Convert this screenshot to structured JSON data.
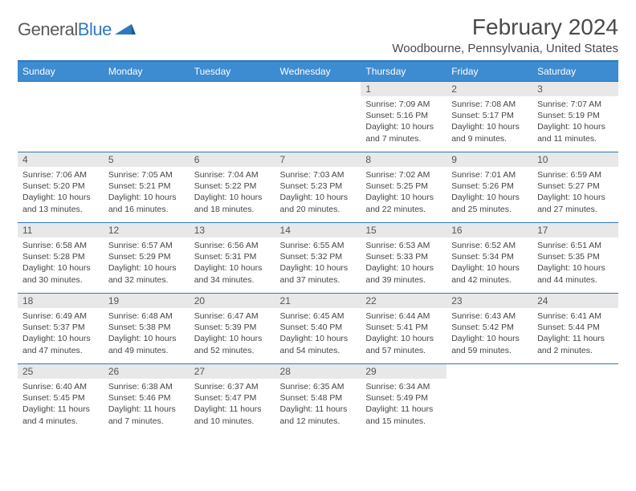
{
  "brand": {
    "word1": "General",
    "word2": "Blue"
  },
  "header": {
    "month_title": "February 2024",
    "location": "Woodbourne, Pennsylvania, United States"
  },
  "colors": {
    "accent": "#3d8bd0",
    "rule": "#2f78bf",
    "daynum_bg": "#e8e8e8",
    "text": "#454545"
  },
  "weekdays": [
    "Sunday",
    "Monday",
    "Tuesday",
    "Wednesday",
    "Thursday",
    "Friday",
    "Saturday"
  ],
  "layout": {
    "first_weekday_index": 4,
    "days_in_month": 29
  },
  "days": [
    {
      "n": 1,
      "sunrise": "7:09 AM",
      "sunset": "5:16 PM",
      "daylight": "10 hours and 7 minutes."
    },
    {
      "n": 2,
      "sunrise": "7:08 AM",
      "sunset": "5:17 PM",
      "daylight": "10 hours and 9 minutes."
    },
    {
      "n": 3,
      "sunrise": "7:07 AM",
      "sunset": "5:19 PM",
      "daylight": "10 hours and 11 minutes."
    },
    {
      "n": 4,
      "sunrise": "7:06 AM",
      "sunset": "5:20 PM",
      "daylight": "10 hours and 13 minutes."
    },
    {
      "n": 5,
      "sunrise": "7:05 AM",
      "sunset": "5:21 PM",
      "daylight": "10 hours and 16 minutes."
    },
    {
      "n": 6,
      "sunrise": "7:04 AM",
      "sunset": "5:22 PM",
      "daylight": "10 hours and 18 minutes."
    },
    {
      "n": 7,
      "sunrise": "7:03 AM",
      "sunset": "5:23 PM",
      "daylight": "10 hours and 20 minutes."
    },
    {
      "n": 8,
      "sunrise": "7:02 AM",
      "sunset": "5:25 PM",
      "daylight": "10 hours and 22 minutes."
    },
    {
      "n": 9,
      "sunrise": "7:01 AM",
      "sunset": "5:26 PM",
      "daylight": "10 hours and 25 minutes."
    },
    {
      "n": 10,
      "sunrise": "6:59 AM",
      "sunset": "5:27 PM",
      "daylight": "10 hours and 27 minutes."
    },
    {
      "n": 11,
      "sunrise": "6:58 AM",
      "sunset": "5:28 PM",
      "daylight": "10 hours and 30 minutes."
    },
    {
      "n": 12,
      "sunrise": "6:57 AM",
      "sunset": "5:29 PM",
      "daylight": "10 hours and 32 minutes."
    },
    {
      "n": 13,
      "sunrise": "6:56 AM",
      "sunset": "5:31 PM",
      "daylight": "10 hours and 34 minutes."
    },
    {
      "n": 14,
      "sunrise": "6:55 AM",
      "sunset": "5:32 PM",
      "daylight": "10 hours and 37 minutes."
    },
    {
      "n": 15,
      "sunrise": "6:53 AM",
      "sunset": "5:33 PM",
      "daylight": "10 hours and 39 minutes."
    },
    {
      "n": 16,
      "sunrise": "6:52 AM",
      "sunset": "5:34 PM",
      "daylight": "10 hours and 42 minutes."
    },
    {
      "n": 17,
      "sunrise": "6:51 AM",
      "sunset": "5:35 PM",
      "daylight": "10 hours and 44 minutes."
    },
    {
      "n": 18,
      "sunrise": "6:49 AM",
      "sunset": "5:37 PM",
      "daylight": "10 hours and 47 minutes."
    },
    {
      "n": 19,
      "sunrise": "6:48 AM",
      "sunset": "5:38 PM",
      "daylight": "10 hours and 49 minutes."
    },
    {
      "n": 20,
      "sunrise": "6:47 AM",
      "sunset": "5:39 PM",
      "daylight": "10 hours and 52 minutes."
    },
    {
      "n": 21,
      "sunrise": "6:45 AM",
      "sunset": "5:40 PM",
      "daylight": "10 hours and 54 minutes."
    },
    {
      "n": 22,
      "sunrise": "6:44 AM",
      "sunset": "5:41 PM",
      "daylight": "10 hours and 57 minutes."
    },
    {
      "n": 23,
      "sunrise": "6:43 AM",
      "sunset": "5:42 PM",
      "daylight": "10 hours and 59 minutes."
    },
    {
      "n": 24,
      "sunrise": "6:41 AM",
      "sunset": "5:44 PM",
      "daylight": "11 hours and 2 minutes."
    },
    {
      "n": 25,
      "sunrise": "6:40 AM",
      "sunset": "5:45 PM",
      "daylight": "11 hours and 4 minutes."
    },
    {
      "n": 26,
      "sunrise": "6:38 AM",
      "sunset": "5:46 PM",
      "daylight": "11 hours and 7 minutes."
    },
    {
      "n": 27,
      "sunrise": "6:37 AM",
      "sunset": "5:47 PM",
      "daylight": "11 hours and 10 minutes."
    },
    {
      "n": 28,
      "sunrise": "6:35 AM",
      "sunset": "5:48 PM",
      "daylight": "11 hours and 12 minutes."
    },
    {
      "n": 29,
      "sunrise": "6:34 AM",
      "sunset": "5:49 PM",
      "daylight": "11 hours and 15 minutes."
    }
  ],
  "labels": {
    "sunrise": "Sunrise:",
    "sunset": "Sunset:",
    "daylight": "Daylight:"
  }
}
